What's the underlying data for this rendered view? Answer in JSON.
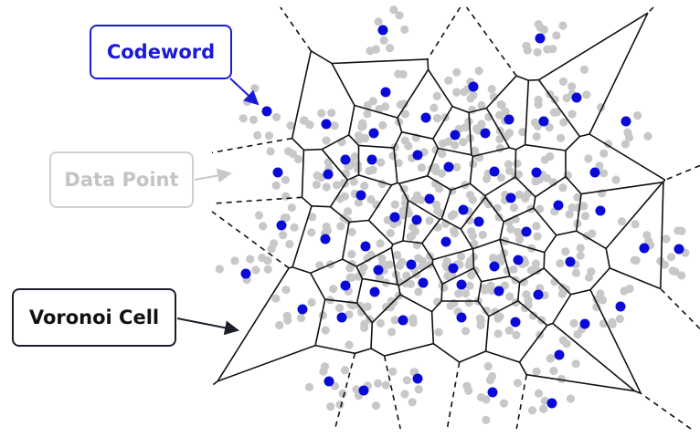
{
  "callouts": {
    "codeword": "Codeword",
    "data_point": "Data Point",
    "voronoi_cell": "Voronoi Cell"
  },
  "colors": {
    "codeword": "#0a0ad8",
    "data_point": "#c8c8c8",
    "cell_edge": "#111111",
    "codeword_callout": "#1a1ad6",
    "data_point_callout": "#d0d0d0",
    "voronoi_callout": "#1b1f2a"
  }
}
